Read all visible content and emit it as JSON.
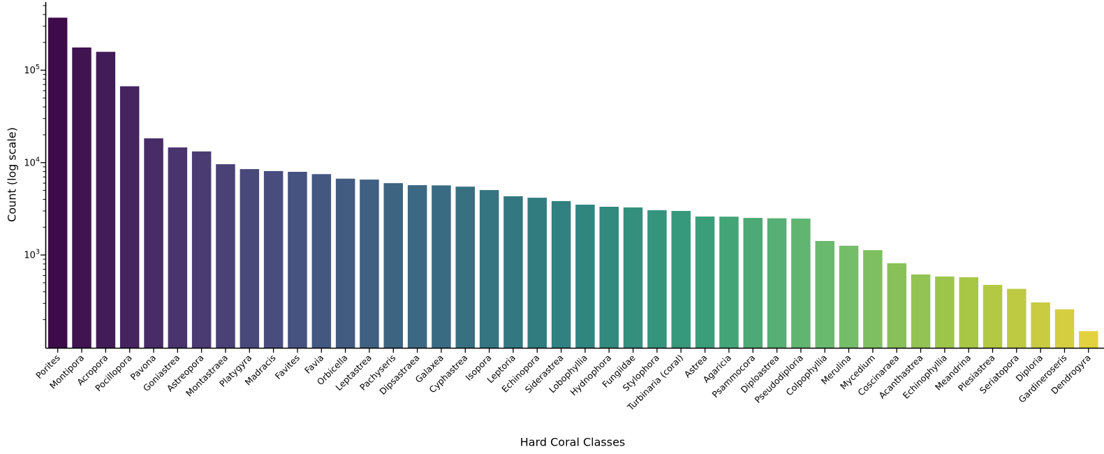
{
  "figure": {
    "background": "#ffffff",
    "text_color": "#000000",
    "axis_color": "#000000"
  },
  "chart_data": {
    "type": "bar",
    "title": "",
    "xlabel": "Hard Coral Classes",
    "ylabel": "Count (log scale)",
    "y_scale": "log",
    "ylim": [
      98,
      545000
    ],
    "grid": false,
    "legend": null,
    "y_major_ticks": [
      1000,
      10000,
      100000
    ],
    "y_major_tick_labels": [
      "10^3",
      "10^4",
      "10^5"
    ],
    "palette": {
      "name": "viridis",
      "anchors": [
        "#440154",
        "#472d7b",
        "#3b528b",
        "#2c728e",
        "#21918c",
        "#28ae80",
        "#5ec962",
        "#addc30",
        "#fde725"
      ],
      "saturation": 0.75
    },
    "categories": [
      "Porites",
      "Montipora",
      "Acropora",
      "Pocillopora",
      "Pavona",
      "Goniastrea",
      "Astreopora",
      "Montastraea",
      "Platygyra",
      "Madracis",
      "Favites",
      "Favia",
      "Orbicella",
      "Leptastrea",
      "Pachyseris",
      "Dipsastraea",
      "Galaxea",
      "Cyphastrea",
      "Isopora",
      "Leptoria",
      "Echinopora",
      "Siderastrea",
      "Lobophyllia",
      "Hydnophora",
      "Fungiidae",
      "Stylophora",
      "Turbinaria (coral)",
      "Astrea",
      "Agaricia",
      "Psammocora",
      "Diploastrea",
      "Pseudodiploria",
      "Colpophyllia",
      "Merulina",
      "Mycedium",
      "Coscinaraea",
      "Acanthastrea",
      "Echinophyllia",
      "Meandrina",
      "Plesiastrea",
      "Seriatopora",
      "Diploria",
      "Gardineroseris",
      "Dendrogyra"
    ],
    "values": [
      370000,
      176000,
      158000,
      67000,
      18300,
      14600,
      13200,
      9600,
      8500,
      8100,
      7950,
      7500,
      6700,
      6550,
      6000,
      5700,
      5670,
      5500,
      5050,
      4320,
      4170,
      3830,
      3510,
      3330,
      3270,
      3050,
      3000,
      2610,
      2600,
      2520,
      2500,
      2480,
      1420,
      1260,
      1130,
      815,
      615,
      585,
      575,
      475,
      430,
      307,
      258,
      150
    ]
  }
}
